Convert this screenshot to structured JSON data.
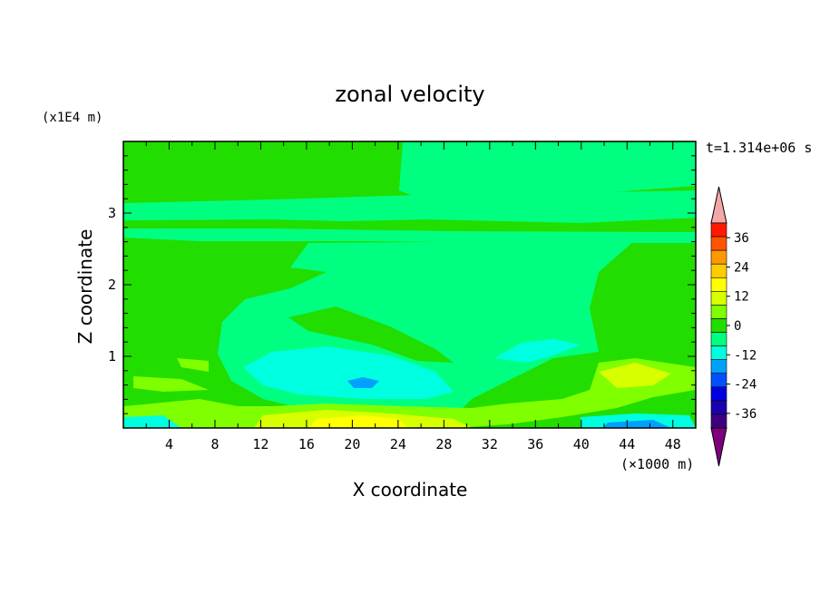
{
  "chart_data": {
    "type": "heatmap",
    "title": "zonal velocity",
    "xlabel": "X coordinate",
    "ylabel": "Z coordinate",
    "x_unit": "(×1000 m)",
    "y_unit": "(x1E4 m)",
    "time_label": "t=1.314e+06 s",
    "xlim": [
      0,
      50
    ],
    "ylim": [
      0,
      4
    ],
    "x_ticks": [
      "4",
      "8",
      "12",
      "16",
      "20",
      "24",
      "28",
      "32",
      "36",
      "40",
      "44",
      "48"
    ],
    "y_ticks": [
      "1",
      "2",
      "3"
    ],
    "colorbar": {
      "levels": [
        -42,
        -36,
        -30,
        -24,
        -18,
        -12,
        -6,
        0,
        6,
        12,
        18,
        24,
        30,
        36,
        42
      ],
      "tick_labels": [
        "36",
        "24",
        "12",
        "0",
        "-12",
        "-24",
        "-36"
      ],
      "colors": [
        "#7f007f",
        "#3f007f",
        "#1c00b0",
        "#0000e0",
        "#0050ff",
        "#00a0ff",
        "#00ffe0",
        "#00ff80",
        "#22dd00",
        "#80ff00",
        "#d8ff00",
        "#ffff00",
        "#ffcc00",
        "#ff9900",
        "#ff5500",
        "#ff1a00",
        "#f4a7a7"
      ]
    },
    "field": {
      "background": "#22dd00",
      "regions": [
        {
          "level": 3,
          "color": "#00ff80",
          "desc": "upper right band"
        },
        {
          "level": 3,
          "color": "#00ff80",
          "desc": "central plume"
        },
        {
          "level": 4,
          "color": "#00ffe0",
          "desc": "lower-left minimum near x=20 km"
        },
        {
          "level": 5,
          "color": "#00a0ff",
          "desc": "core minimum"
        },
        {
          "level": 4,
          "color": "#00ffe0",
          "desc": "surface minimum near x=44 km"
        },
        {
          "level": -1,
          "color": "#80ff00",
          "desc": "low-level positive band"
        },
        {
          "level": -2,
          "color": "#d8ff00",
          "desc": "surface maximum near x=20 km"
        },
        {
          "level": -3,
          "color": "#ffff00",
          "desc": "surface maximum core"
        }
      ]
    }
  }
}
